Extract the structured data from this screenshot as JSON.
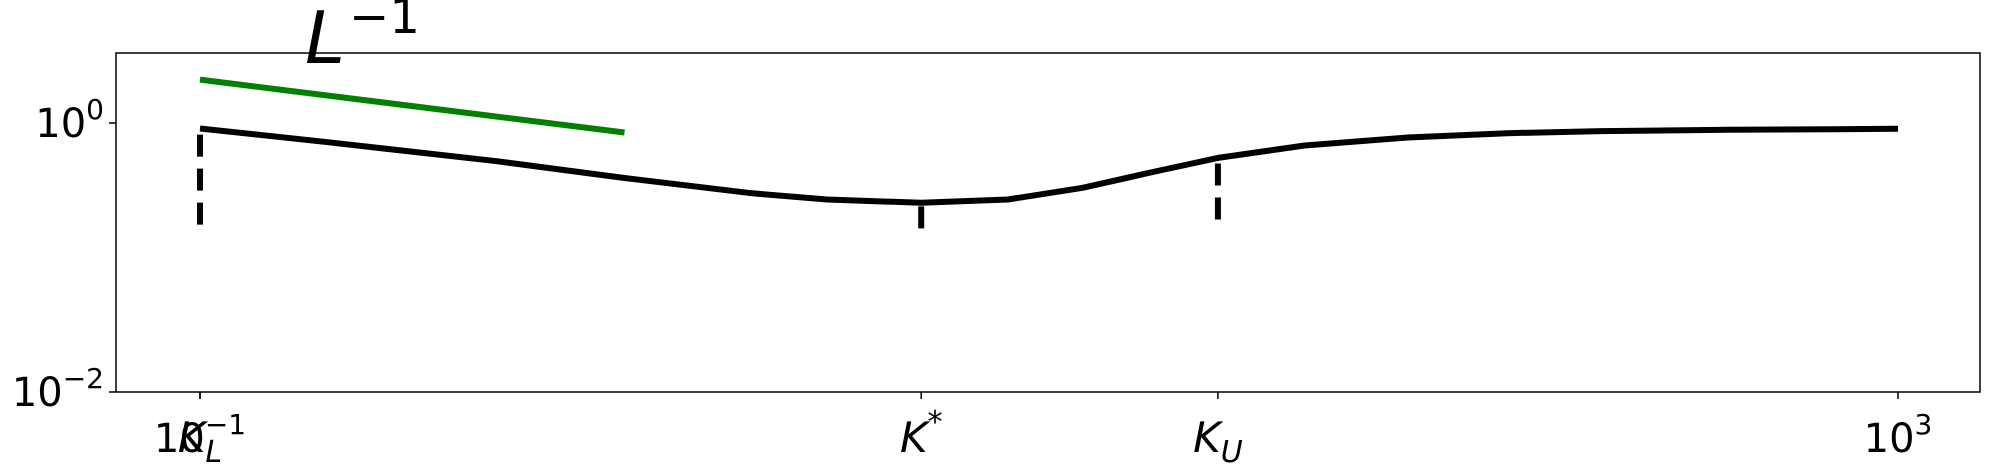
{
  "chart_data": {
    "type": "line",
    "x_scale": "log",
    "y_scale": "log",
    "xlim": [
      0.1,
      3000
    ],
    "ylim": [
      0.01,
      3
    ],
    "x_ticks": [
      {
        "value": 0.1,
        "base": "10",
        "exp": "−1"
      },
      {
        "value": 1000,
        "base": "10",
        "exp": "3"
      }
    ],
    "x_named_ticks": [
      {
        "name": "K_L",
        "value": 0.1,
        "main": "K",
        "sub": "L",
        "sup": ""
      },
      {
        "name": "K_star",
        "value": 5,
        "main": "K",
        "sub": "",
        "sup": "*"
      },
      {
        "name": "K_U",
        "value": 25,
        "main": "K",
        "sub": "U",
        "sup": ""
      }
    ],
    "y_ticks": [
      {
        "value": 1,
        "base": "10",
        "exp": "0"
      },
      {
        "value": 0.01,
        "base": "10",
        "exp": "−2"
      }
    ],
    "series": [
      {
        "color": "#000000",
        "x": [
          0.1,
          0.2,
          0.5,
          1,
          2,
          3,
          5,
          8,
          12,
          18,
          25,
          40,
          70,
          120,
          200,
          400,
          700,
          1000
        ],
        "y": [
          0.91,
          0.72,
          0.52,
          0.39,
          0.3,
          0.27,
          0.255,
          0.27,
          0.33,
          0.44,
          0.55,
          0.68,
          0.78,
          0.84,
          0.87,
          0.89,
          0.9,
          0.905
        ]
      }
    ],
    "reference_line": {
      "label_main": "L",
      "label_exp": "−1",
      "color": "#008000",
      "x": [
        0.1,
        1
      ],
      "y": [
        2.1,
        0.85
      ]
    },
    "vertical_markers": [
      {
        "x": 0.1,
        "y_top": 0.82,
        "y_bottom": 0.16
      },
      {
        "x": 5,
        "y_top": 0.24,
        "y_bottom": 0.16
      },
      {
        "x": 25,
        "y_top": 0.5,
        "y_bottom": 0.16
      }
    ],
    "grid": false,
    "legend": false
  }
}
